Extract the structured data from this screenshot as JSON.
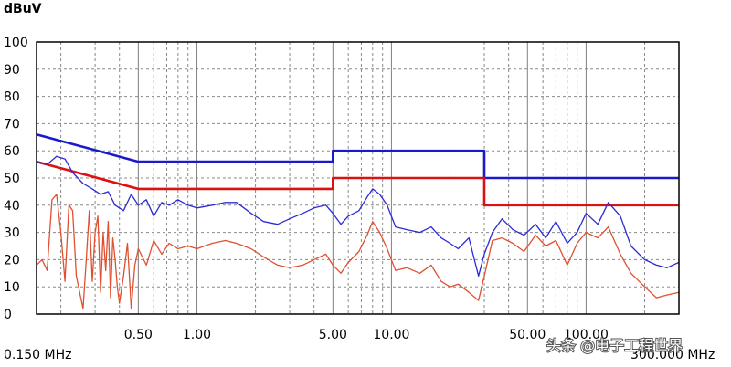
{
  "chart_data": {
    "type": "line",
    "ylabel": "dBuV",
    "xlabel": "",
    "x_scale": "log",
    "xlim": [
      0.15,
      300
    ],
    "ylim": [
      0,
      100
    ],
    "yticks": [
      0,
      10,
      20,
      30,
      40,
      50,
      60,
      70,
      80,
      90,
      100
    ],
    "xtick_labels": [
      {
        "x": 0.5,
        "label": "0.50"
      },
      {
        "x": 1,
        "label": "1.00"
      },
      {
        "x": 5,
        "label": "5.00"
      },
      {
        "x": 10,
        "label": "10.00"
      },
      {
        "x": 50,
        "label": "50.00"
      },
      {
        "x": 100,
        "label": "100.00"
      }
    ],
    "x_start_label": "0.150 MHz",
    "x_end_label": "300.000 MHz",
    "grid": true,
    "watermark": "头条 @电子工程世界",
    "series": [
      {
        "color": "#1a1acc",
        "style": "limit",
        "x": [
          0.15,
          0.5,
          5,
          5,
          30,
          30,
          300
        ],
        "y": [
          66,
          56,
          56,
          60,
          60,
          50,
          50
        ]
      },
      {
        "color": "#dd1111",
        "style": "limit",
        "x": [
          0.15,
          0.5,
          5,
          5,
          30,
          30,
          300
        ],
        "y": [
          56,
          46,
          46,
          50,
          50,
          40,
          40
        ]
      },
      {
        "color": "#2b2bd6",
        "style": "trace",
        "x": [
          0.15,
          0.17,
          0.19,
          0.21,
          0.23,
          0.26,
          0.29,
          0.32,
          0.35,
          0.38,
          0.42,
          0.46,
          0.5,
          0.55,
          0.6,
          0.66,
          0.72,
          0.8,
          0.9,
          1.0,
          1.2,
          1.4,
          1.6,
          1.9,
          2.2,
          2.6,
          3.0,
          3.5,
          4.0,
          4.6,
          5.0,
          5.5,
          6.0,
          6.8,
          7.5,
          8.0,
          8.7,
          9.5,
          10.5,
          12,
          14,
          16,
          18,
          20,
          22,
          25,
          28,
          30,
          33,
          37,
          42,
          48,
          55,
          62,
          70,
          80,
          90,
          100,
          115,
          130,
          150,
          170,
          200,
          230,
          260,
          300
        ],
        "y": [
          56,
          55,
          58,
          57,
          52,
          48,
          46,
          44,
          45,
          40,
          38,
          44,
          40,
          42,
          36,
          41,
          40,
          42,
          40,
          39,
          40,
          41,
          41,
          37,
          34,
          33,
          35,
          37,
          39,
          40,
          37,
          33,
          36,
          38,
          43,
          46,
          44,
          40,
          32,
          31,
          30,
          32,
          28,
          26,
          24,
          28,
          14,
          22,
          30,
          35,
          31,
          29,
          33,
          28,
          34,
          26,
          30,
          37,
          33,
          41,
          36,
          25,
          20,
          18,
          17,
          19
        ]
      },
      {
        "color": "#e05030",
        "style": "trace",
        "x": [
          0.15,
          0.16,
          0.17,
          0.18,
          0.19,
          0.2,
          0.21,
          0.22,
          0.23,
          0.24,
          0.25,
          0.26,
          0.27,
          0.28,
          0.29,
          0.3,
          0.31,
          0.32,
          0.33,
          0.34,
          0.35,
          0.36,
          0.37,
          0.38,
          0.39,
          0.4,
          0.42,
          0.44,
          0.46,
          0.48,
          0.5,
          0.55,
          0.6,
          0.66,
          0.72,
          0.8,
          0.9,
          1.0,
          1.2,
          1.4,
          1.6,
          1.9,
          2.2,
          2.6,
          3.0,
          3.5,
          4.0,
          4.6,
          5.0,
          5.5,
          6.0,
          6.8,
          7.5,
          8.0,
          8.7,
          9.5,
          10.5,
          12,
          14,
          16,
          18,
          20,
          22,
          25,
          28,
          30,
          33,
          37,
          42,
          48,
          55,
          62,
          70,
          80,
          90,
          100,
          115,
          130,
          150,
          170,
          200,
          230,
          260,
          300
        ],
        "y": [
          18,
          20,
          16,
          42,
          44,
          30,
          12,
          40,
          38,
          14,
          8,
          2,
          20,
          38,
          12,
          30,
          36,
          8,
          30,
          16,
          34,
          6,
          28,
          20,
          10,
          4,
          14,
          26,
          2,
          18,
          24,
          18,
          27,
          22,
          26,
          24,
          25,
          24,
          26,
          27,
          26,
          24,
          21,
          18,
          17,
          18,
          20,
          22,
          18,
          15,
          19,
          23,
          29,
          34,
          30,
          24,
          16,
          17,
          15,
          18,
          12,
          10,
          11,
          8,
          5,
          14,
          27,
          28,
          26,
          23,
          29,
          25,
          27,
          18,
          26,
          30,
          28,
          32,
          22,
          15,
          10,
          6,
          7,
          8
        ]
      }
    ]
  }
}
